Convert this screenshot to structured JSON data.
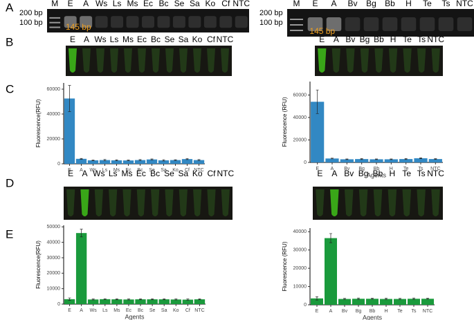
{
  "panel_labels": [
    "A",
    "B",
    "C",
    "D",
    "E"
  ],
  "gels": [
    {
      "lane_labels": [
        "M",
        "E",
        "A",
        "Ws",
        "Ls",
        "Ms",
        "Ec",
        "Bc",
        "Se",
        "Sa",
        "Ko",
        "Cf",
        "NTC"
      ],
      "markers": [
        "200 bp",
        "100 bp"
      ],
      "band_label": "145 bp"
    },
    {
      "lane_labels": [
        "M",
        "E",
        "A",
        "Bv",
        "Bg",
        "Bb",
        "H",
        "Te",
        "Ts",
        "NTC"
      ],
      "markers": [
        "200 bp",
        "100 bp"
      ],
      "band_label": "145 bp"
    }
  ],
  "tubes": [
    {
      "labels": [
        "E",
        "A",
        "Ws",
        "Ls",
        "Ms",
        "Ec",
        "Bc",
        "Se",
        "Sa",
        "Ko",
        "Cf",
        "NTC"
      ]
    },
    {
      "labels": [
        "E",
        "A",
        "Bv",
        "Bg",
        "Bb",
        "H",
        "Te",
        "Ts",
        "NTC"
      ]
    },
    {
      "labels": [
        "E",
        "A",
        "Ws",
        "Ls",
        "Ms",
        "Ec",
        "Bc",
        "Se",
        "Sa",
        "Ko",
        "Cf",
        "NTC"
      ]
    },
    {
      "labels": [
        "E",
        "A",
        "Bv",
        "Bg",
        "Bb",
        "H",
        "Te",
        "Ts",
        "NTC"
      ]
    }
  ],
  "chart_data": [
    {
      "type": "bar",
      "y_label": "Fluorescence(RFU)",
      "color": "#3288c3",
      "categories": [
        "E",
        "A",
        "Ws",
        "Ls",
        "Ms",
        "Ec",
        "Bc",
        "Se",
        "Sa",
        "Ko",
        "Cf",
        "NTC"
      ],
      "values": [
        52500,
        4000,
        2800,
        3000,
        2800,
        2700,
        3000,
        3500,
        2800,
        3000,
        3800,
        3000
      ],
      "errors": [
        10500,
        300,
        300,
        500,
        400,
        300,
        400,
        400,
        500,
        300,
        400,
        400
      ],
      "ylim": [
        0,
        65000
      ],
      "yticks": [
        0,
        20000,
        40000,
        60000
      ]
    },
    {
      "type": "bar",
      "y_label": "Fluorescence (RFU)",
      "x_label": "Agents",
      "color": "#3288c3",
      "categories": [
        "E",
        "A",
        "Bv",
        "Bg",
        "Bb",
        "H",
        "Te",
        "Ts",
        "NTC"
      ],
      "values": [
        54000,
        3500,
        2800,
        3000,
        2800,
        2800,
        3000,
        3700,
        3000
      ],
      "errors": [
        10500,
        300,
        300,
        400,
        300,
        300,
        400,
        400,
        300
      ],
      "ylim": [
        0,
        72000
      ],
      "yticks": [
        0,
        20000,
        40000,
        60000
      ]
    },
    {
      "type": "bar",
      "y_label": "Fluorescence(RFU)",
      "x_label": "Agents",
      "color": "#1a9a3c",
      "categories": [
        "E",
        "A",
        "Ws",
        "Ls",
        "Ms",
        "Ec",
        "Bc",
        "Se",
        "Sa",
        "Ko",
        "Cf",
        "NTC"
      ],
      "values": [
        3200,
        46000,
        3000,
        3200,
        3100,
        3000,
        3100,
        3100,
        3100,
        3000,
        2900,
        3100
      ],
      "errors": [
        800,
        2500,
        300,
        300,
        300,
        300,
        300,
        300,
        300,
        300,
        400,
        300
      ],
      "ylim": [
        0,
        51000
      ],
      "yticks": [
        0,
        10000,
        20000,
        30000,
        40000,
        50000
      ]
    },
    {
      "type": "bar",
      "y_label": "Fluorescence (RFU)",
      "x_label": "Agents",
      "color": "#1a9a3c",
      "categories": [
        "E",
        "A",
        "Bv",
        "Bg",
        "Bb",
        "H",
        "Te",
        "Ts",
        "NTC"
      ],
      "values": [
        3500,
        36500,
        3200,
        3300,
        3300,
        3200,
        3200,
        3300,
        3300
      ],
      "errors": [
        900,
        2500,
        300,
        400,
        300,
        400,
        300,
        400,
        300
      ],
      "ylim": [
        0,
        42000
      ],
      "yticks": [
        0,
        10000,
        20000,
        30000,
        40000
      ]
    }
  ]
}
